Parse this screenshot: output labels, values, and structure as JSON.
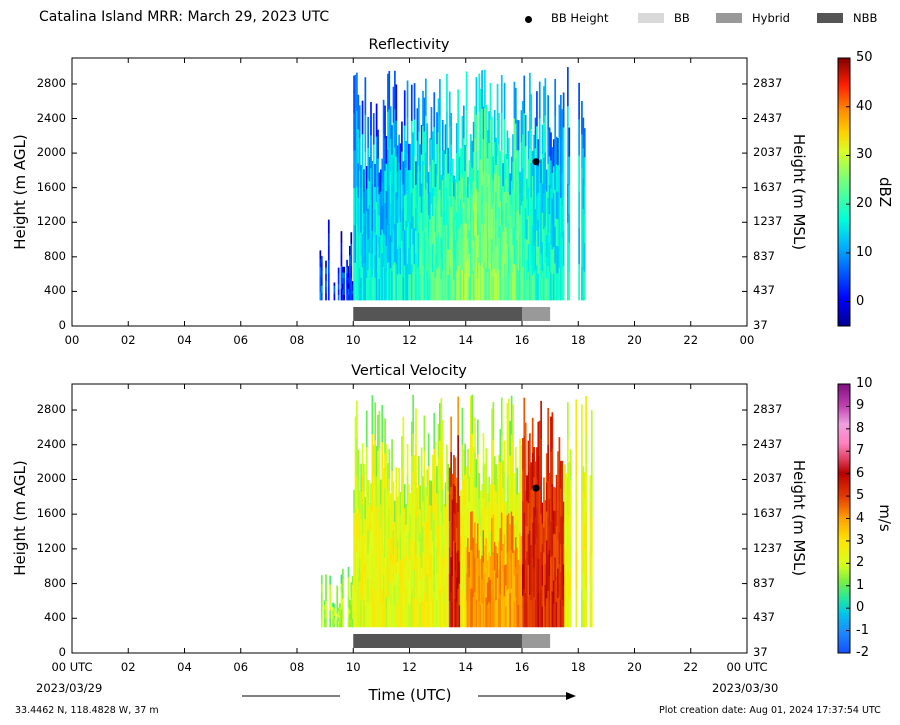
{
  "page": {
    "title": "Catalina Island MRR:  March 29, 2023 UTC",
    "xlabel": "Time (UTC)",
    "date_left": "2023/03/29",
    "date_right": "2023/03/30",
    "location": "33.4462 N, 118.4828 W, 37 m",
    "creation": "Plot creation date: Aug 01, 2024 17:37:54 UTC"
  },
  "legend": [
    {
      "label": "BB Height",
      "kind": "dot",
      "color": "#000000"
    },
    {
      "label": "BB",
      "kind": "swatch",
      "color": "#d9d9d9"
    },
    {
      "label": "Hybrid",
      "kind": "swatch",
      "color": "#999999"
    },
    {
      "label": "NBB",
      "kind": "swatch",
      "color": "#555555"
    }
  ],
  "chart_data": [
    {
      "type": "heatmap",
      "title": "Reflectivity",
      "xlabel": "",
      "ylabel": "Height (m AGL)",
      "ylabel_right": "Height (m MSL)",
      "x_ticks": [
        "00",
        "02",
        "04",
        "06",
        "08",
        "10",
        "12",
        "14",
        "16",
        "18",
        "20",
        "22",
        "00"
      ],
      "x_range_hours": [
        0,
        24
      ],
      "y_ticks_left": [
        "0",
        "400",
        "800",
        "1200",
        "1600",
        "2000",
        "2400",
        "2800"
      ],
      "y_ticks_right": [
        "37",
        "437",
        "837",
        "1237",
        "1637",
        "2037",
        "2437",
        "2837"
      ],
      "ylim": [
        0,
        3100
      ],
      "colorbar": {
        "label": "dBZ",
        "ticks": [
          "50",
          "40",
          "30",
          "20",
          "10",
          "0"
        ],
        "range": [
          -5,
          50
        ]
      },
      "data_window_hours": [
        8.8,
        18.5
      ],
      "bb_height": {
        "time_hours": 16.5,
        "height_m": 1900
      },
      "classification": [
        {
          "class": "NBB",
          "start_hours": 10.0,
          "end_hours": 16.0
        },
        {
          "class": "Hybrid",
          "start_hours": 16.0,
          "end_hours": 17.0
        }
      ]
    },
    {
      "type": "heatmap",
      "title": "Vertical Velocity",
      "xlabel": "Time (UTC)",
      "ylabel": "Height (m AGL)",
      "ylabel_right": "Height (m MSL)",
      "x_ticks": [
        "00 UTC",
        "02",
        "04",
        "06",
        "08",
        "10",
        "12",
        "14",
        "16",
        "18",
        "20",
        "22",
        "00 UTC"
      ],
      "x_range_hours": [
        0,
        24
      ],
      "y_ticks_left": [
        "0",
        "400",
        "800",
        "1200",
        "1600",
        "2000",
        "2400",
        "2800"
      ],
      "y_ticks_right": [
        "37",
        "437",
        "837",
        "1237",
        "1637",
        "2037",
        "2437",
        "2837"
      ],
      "ylim": [
        0,
        3100
      ],
      "colorbar": {
        "label": "m/s",
        "ticks": [
          "10",
          "9",
          "8",
          "7",
          "6",
          "5",
          "4",
          "3",
          "2",
          "1",
          "0",
          "-1",
          "-2"
        ],
        "range": [
          -2,
          10
        ]
      },
      "data_window_hours": [
        8.8,
        18.5
      ],
      "bb_height": {
        "time_hours": 16.5,
        "height_m": 1900
      },
      "classification": [
        {
          "class": "NBB",
          "start_hours": 10.0,
          "end_hours": 16.0
        },
        {
          "class": "Hybrid",
          "start_hours": 16.0,
          "end_hours": 17.0
        }
      ]
    }
  ]
}
